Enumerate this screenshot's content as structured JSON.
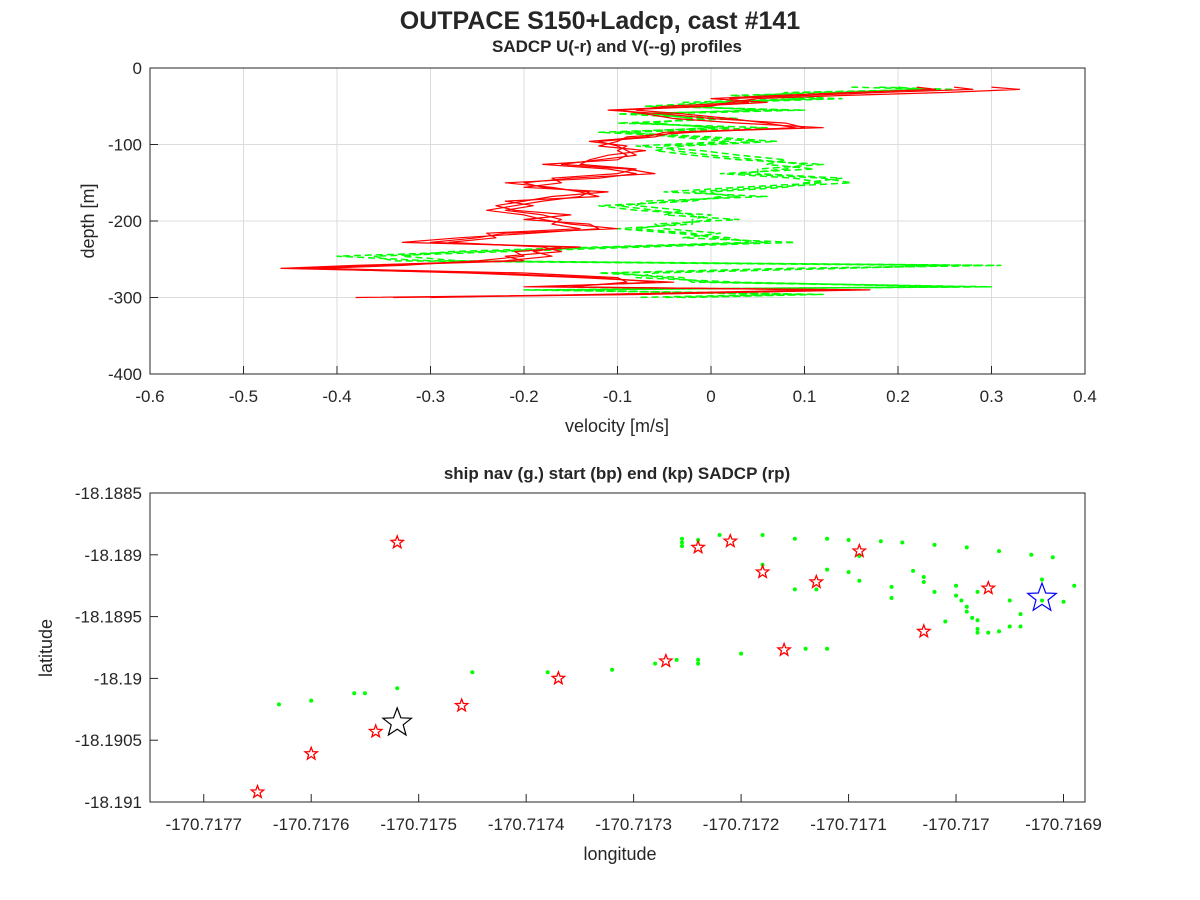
{
  "figure": {
    "title": "OUTPACE S150+Ladcp, cast #141"
  },
  "chart_data": [
    {
      "type": "line",
      "title": "SADCP U(-r) and V(--g) profiles",
      "xlabel": "velocity [m/s]",
      "ylabel": "depth [m]",
      "xlim": [
        -0.6,
        0.4
      ],
      "ylim": [
        -400,
        0
      ],
      "xticks": [
        -0.6,
        -0.5,
        -0.4,
        -0.3,
        -0.2,
        -0.1,
        0,
        0.1,
        0.2,
        0.3,
        0.4
      ],
      "yticks": [
        -400,
        -300,
        -200,
        -100,
        0
      ],
      "xtick_labels": [
        "-0.6",
        "-0.5",
        "-0.4",
        "-0.3",
        "-0.2",
        "-0.1",
        "0",
        "0.1",
        "0.2",
        "0.3",
        "0.4"
      ],
      "ytick_labels": [
        "-400",
        "-300",
        "-200",
        "-100",
        "0"
      ],
      "grid": true,
      "series": [
        {
          "key": "U",
          "color": "#ff0000",
          "style": "solid",
          "depths": [
            -25,
            -28,
            -32,
            -36,
            -40,
            -45,
            -50,
            -55,
            -60,
            -66,
            -72,
            -78,
            -84,
            -90,
            -96,
            -102,
            -108,
            -114,
            -120,
            -126,
            -132,
            -138,
            -144,
            -150,
            -156,
            -162,
            -168,
            -174,
            -180,
            -186,
            -192,
            -198,
            -204,
            -210,
            -216,
            -222,
            -228,
            -234,
            -240,
            -246,
            -252,
            -258,
            -262,
            -268,
            -274,
            -280,
            -286,
            -290,
            -296,
            -300
          ],
          "profiles": [
            [
              0.3,
              0.33,
              0.25,
              0.14,
              0.05,
              0.02,
              0.0,
              -0.1,
              -0.07,
              -0.04,
              0.03,
              0.12,
              -0.04,
              -0.06,
              -0.12,
              -0.1,
              -0.09,
              -0.08,
              -0.12,
              -0.16,
              -0.09,
              -0.06,
              -0.15,
              -0.2,
              -0.18,
              -0.13,
              -0.14,
              -0.18,
              -0.21,
              -0.24,
              -0.2,
              -0.18,
              -0.15,
              -0.1,
              -0.22,
              -0.25,
              -0.3,
              -0.16,
              -0.19,
              -0.17,
              -0.22,
              -0.38,
              -0.46,
              -0.24,
              -0.12,
              -0.06,
              -0.18,
              0.17,
              -0.09,
              -0.38
            ],
            [
              0.26,
              0.28,
              0.18,
              0.1,
              0.02,
              0.04,
              -0.05,
              -0.08,
              -0.03,
              0.02,
              0.06,
              0.09,
              -0.02,
              -0.09,
              -0.1,
              -0.12,
              -0.07,
              -0.11,
              -0.13,
              -0.14,
              -0.08,
              -0.1,
              -0.17,
              -0.16,
              -0.2,
              -0.11,
              -0.17,
              -0.2,
              -0.23,
              -0.21,
              -0.15,
              -0.2,
              -0.13,
              -0.12,
              -0.19,
              -0.27,
              -0.33,
              -0.14,
              -0.21,
              -0.2,
              -0.25,
              -0.33,
              -0.42,
              -0.2,
              -0.1,
              -0.09,
              -0.15,
              0.12,
              -0.12,
              -0.3
            ],
            [
              0.22,
              0.24,
              0.15,
              0.07,
              0.0,
              0.06,
              -0.02,
              -0.11,
              -0.05,
              0.0,
              0.08,
              0.1,
              -0.05,
              -0.07,
              -0.13,
              -0.09,
              -0.1,
              -0.09,
              -0.1,
              -0.18,
              -0.11,
              -0.08,
              -0.12,
              -0.22,
              -0.17,
              -0.14,
              -0.12,
              -0.22,
              -0.19,
              -0.22,
              -0.18,
              -0.16,
              -0.17,
              -0.14,
              -0.24,
              -0.23,
              -0.28,
              -0.18,
              -0.16,
              -0.22,
              -0.2,
              -0.36,
              -0.44,
              -0.26,
              -0.14,
              -0.04,
              -0.2,
              0.15,
              -0.07,
              -0.34
            ]
          ]
        },
        {
          "key": "V",
          "color": "#00ff00",
          "style": "dashed",
          "depths": [
            -25,
            -28,
            -32,
            -36,
            -40,
            -45,
            -50,
            -55,
            -60,
            -66,
            -72,
            -78,
            -84,
            -90,
            -96,
            -102,
            -108,
            -114,
            -120,
            -126,
            -132,
            -138,
            -144,
            -150,
            -156,
            -162,
            -168,
            -174,
            -180,
            -186,
            -192,
            -198,
            -204,
            -210,
            -216,
            -222,
            -228,
            -234,
            -240,
            -246,
            -252,
            -258,
            -262,
            -268,
            -274,
            -280,
            -286,
            -290,
            -296,
            -300
          ],
          "profiles": [
            [
              0.18,
              0.26,
              0.1,
              0.05,
              0.14,
              0.02,
              -0.05,
              0.08,
              -0.1,
              0.0,
              -0.08,
              0.02,
              -0.12,
              -0.02,
              0.05,
              -0.05,
              -0.04,
              0.0,
              0.05,
              0.1,
              0.08,
              0.03,
              0.12,
              0.15,
              0.06,
              -0.02,
              0.03,
              -0.04,
              -0.1,
              -0.06,
              -0.02,
              0.0,
              -0.04,
              -0.08,
              -0.02,
              0.0,
              0.06,
              -0.1,
              -0.25,
              -0.4,
              -0.3,
              0.29,
              0.1,
              -0.1,
              -0.05,
              0.0,
              0.3,
              -0.2,
              0.1,
              -0.05
            ],
            [
              0.2,
              0.22,
              0.14,
              0.02,
              0.1,
              -0.03,
              -0.02,
              0.05,
              -0.08,
              0.03,
              -0.1,
              0.06,
              -0.09,
              -0.04,
              0.02,
              -0.08,
              -0.01,
              0.03,
              0.08,
              0.06,
              0.11,
              0.01,
              0.09,
              0.12,
              0.03,
              -0.05,
              0.06,
              -0.07,
              -0.08,
              -0.03,
              -0.05,
              0.03,
              -0.06,
              -0.05,
              0.01,
              -0.03,
              0.09,
              -0.07,
              -0.22,
              -0.36,
              -0.34,
              0.25,
              0.14,
              -0.06,
              -0.08,
              0.03,
              0.26,
              -0.16,
              0.07,
              -0.08
            ],
            [
              0.15,
              0.24,
              0.08,
              0.07,
              0.12,
              0.0,
              -0.07,
              0.1,
              -0.06,
              -0.02,
              -0.06,
              0.0,
              -0.1,
              0.0,
              0.07,
              -0.03,
              -0.06,
              -0.02,
              0.03,
              0.12,
              0.05,
              0.05,
              0.14,
              0.1,
              0.08,
              0.0,
              0.01,
              -0.02,
              -0.12,
              -0.08,
              0.0,
              -0.02,
              -0.02,
              -0.1,
              -0.04,
              0.02,
              0.04,
              -0.12,
              -0.28,
              -0.33,
              -0.27,
              0.31,
              0.08,
              -0.12,
              -0.03,
              -0.02,
              0.28,
              -0.18,
              0.12,
              -0.03
            ]
          ]
        }
      ]
    },
    {
      "type": "scatter",
      "title": "ship nav (g.) start (bp) end (kp) SADCP (rp)",
      "xlabel": "longitude",
      "ylabel": "latitude",
      "xlim": [
        -170.71775,
        -170.71688
      ],
      "ylim": [
        -18.191,
        -18.1885
      ],
      "xticks": [
        -170.7177,
        -170.7176,
        -170.7175,
        -170.7174,
        -170.7173,
        -170.7172,
        -170.7171,
        -170.717,
        -170.7169
      ],
      "yticks": [
        -18.191,
        -18.1905,
        -18.19,
        -18.1895,
        -18.189,
        -18.1885
      ],
      "xtick_labels": [
        "-170.7177",
        "-170.7176",
        "-170.7175",
        "-170.7174",
        "-170.7173",
        "-170.7172",
        "-170.7171",
        "-170.717",
        "-170.7169"
      ],
      "ytick_labels": [
        "-18.191",
        "-18.1905",
        "-18.19",
        "-18.1895",
        "-18.189",
        "-18.1885"
      ],
      "grid": false,
      "ship_nav": {
        "color": "#00ff00",
        "points": [
          [
            -170.71745,
            -18.18995
          ],
          [
            -170.71738,
            -18.18995
          ],
          [
            -170.71732,
            -18.18993
          ],
          [
            -170.71728,
            -18.18988
          ],
          [
            -170.71724,
            -18.18985
          ],
          [
            -170.7172,
            -18.1898
          ],
          [
            -170.71714,
            -18.18976
          ],
          [
            -170.71712,
            -18.18976
          ],
          [
            -170.71724,
            -18.18988
          ],
          [
            -170.71752,
            -18.19008
          ],
          [
            -170.71756,
            -18.19012
          ],
          [
            -170.71755,
            -18.19012
          ],
          [
            -170.7176,
            -18.19018
          ],
          [
            -170.71763,
            -18.19021
          ],
          [
            -170.71726,
            -18.18985
          ],
          [
            -170.717255,
            -18.18887
          ],
          [
            -170.717255,
            -18.1889
          ],
          [
            -170.717255,
            -18.18893
          ],
          [
            -170.71724,
            -18.18888
          ],
          [
            -170.71722,
            -18.18884
          ],
          [
            -170.71718,
            -18.18884
          ],
          [
            -170.71715,
            -18.18887
          ],
          [
            -170.71712,
            -18.18887
          ],
          [
            -170.7171,
            -18.18888
          ],
          [
            -170.71707,
            -18.18889
          ],
          [
            -170.71705,
            -18.1889
          ],
          [
            -170.71702,
            -18.18892
          ],
          [
            -170.71699,
            -18.18894
          ],
          [
            -170.71696,
            -18.18897
          ],
          [
            -170.71693,
            -18.189
          ],
          [
            -170.71691,
            -18.18902
          ],
          [
            -170.71709,
            -18.18901
          ],
          [
            -170.71704,
            -18.18913
          ],
          [
            -170.71703,
            -18.18918
          ],
          [
            -170.71703,
            -18.18922
          ],
          [
            -170.717,
            -18.18925
          ],
          [
            -170.71698,
            -18.1893
          ],
          [
            -170.71695,
            -18.18937
          ],
          [
            -170.71692,
            -18.18937
          ],
          [
            -170.7169,
            -18.18938
          ],
          [
            -170.71718,
            -18.18908
          ],
          [
            -170.71712,
            -18.18912
          ],
          [
            -170.7171,
            -18.18914
          ],
          [
            -170.71709,
            -18.18921
          ],
          [
            -170.71706,
            -18.18926
          ],
          [
            -170.71702,
            -18.1893
          ],
          [
            -170.717,
            -18.18933
          ],
          [
            -170.716995,
            -18.18937
          ],
          [
            -170.71699,
            -18.18942
          ],
          [
            -170.71699,
            -18.18946
          ],
          [
            -170.716985,
            -18.18951
          ],
          [
            -170.71698,
            -18.18953
          ],
          [
            -170.71698,
            -18.1896
          ],
          [
            -170.71698,
            -18.18963
          ],
          [
            -170.71697,
            -18.18963
          ],
          [
            -170.71696,
            -18.18962
          ],
          [
            -170.71695,
            -18.18958
          ],
          [
            -170.71694,
            -18.18958
          ],
          [
            -170.71715,
            -18.18928
          ],
          [
            -170.71713,
            -18.18928
          ],
          [
            -170.71706,
            -18.18935
          ],
          [
            -170.71701,
            -18.18954
          ],
          [
            -170.71694,
            -18.18948
          ],
          [
            -170.71692,
            -18.1892
          ],
          [
            -170.71689,
            -18.18925
          ]
        ]
      },
      "sadcp": {
        "color": "#ff0000",
        "points": [
          [
            -170.71752,
            -18.1889
          ],
          [
            -170.71724,
            -18.18894
          ],
          [
            -170.71721,
            -18.18889
          ],
          [
            -170.71718,
            -18.18914
          ],
          [
            -170.71713,
            -18.18922
          ],
          [
            -170.71709,
            -18.18897
          ],
          [
            -170.71703,
            -18.18962
          ],
          [
            -170.71697,
            -18.18927
          ],
          [
            -170.71716,
            -18.18977
          ],
          [
            -170.71727,
            -18.18986
          ],
          [
            -170.71737,
            -18.19
          ],
          [
            -170.71746,
            -18.19022
          ],
          [
            -170.71754,
            -18.19043
          ],
          [
            -170.7176,
            -18.19061
          ],
          [
            -170.71765,
            -18.19092
          ]
        ]
      },
      "start": {
        "color": "#0000ff",
        "point": [
          -170.71692,
          -18.18935
        ]
      },
      "end": {
        "color": "#000000",
        "point": [
          -170.71752,
          -18.19036
        ]
      }
    }
  ]
}
